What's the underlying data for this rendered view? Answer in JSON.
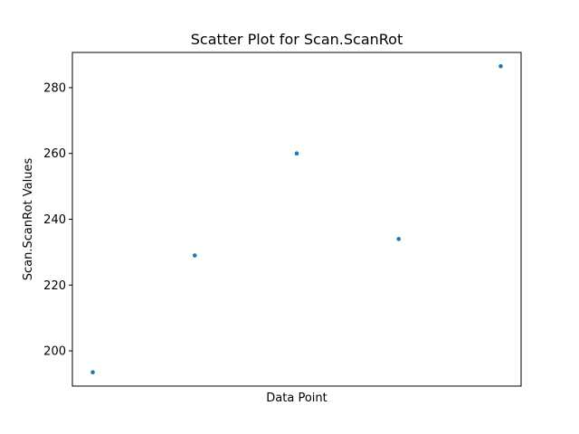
{
  "chart_data": {
    "type": "scatter",
    "title": "Scatter Plot for Scan.ScanRot",
    "xlabel": "Data Point",
    "ylabel": "Scan.ScanRot Values",
    "x": [
      0,
      1,
      2,
      3,
      4
    ],
    "series": [
      {
        "values": [
          193.5,
          229,
          260,
          234,
          286.5
        ]
      }
    ],
    "xlim": [
      -0.2,
      4.2
    ],
    "ylim": [
      189.3,
      290.7
    ],
    "yticks": [
      200,
      220,
      240,
      260,
      280
    ],
    "x_ticks_shown": false,
    "grid": false,
    "marker_color": "#1f77b4"
  }
}
